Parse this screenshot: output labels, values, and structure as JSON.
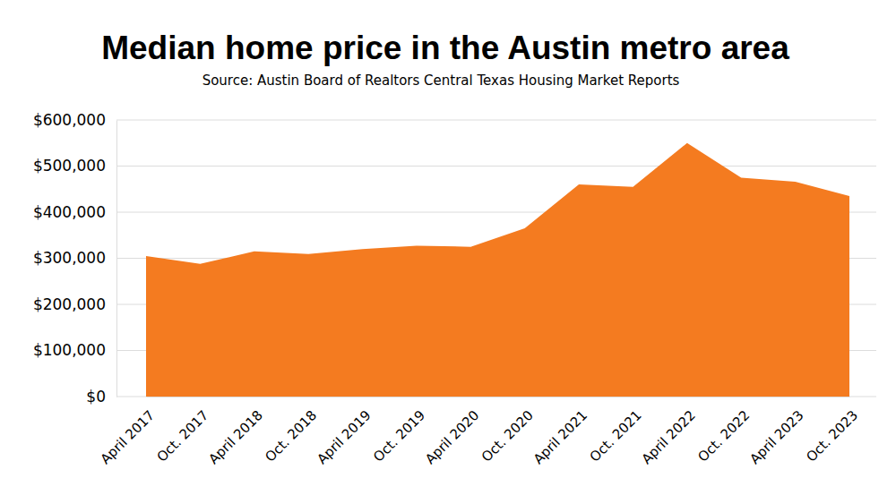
{
  "chart_data": {
    "type": "area",
    "title": "Median home price in the Austin metro area",
    "subtitle": "Source: Austin Board of Realtors Central Texas Housing Market Reports",
    "categories": [
      "April 2017",
      "Oct. 2017",
      "April 2018",
      "Oct. 2018",
      "April 2019",
      "Oct. 2019",
      "April 2020",
      "Oct. 2020",
      "April 2021",
      "Oct. 2021",
      "April 2022",
      "Oct. 2022",
      "April 2023",
      "Oct. 2023"
    ],
    "values": [
      305000,
      288000,
      315000,
      309000,
      320000,
      327000,
      325000,
      365000,
      460000,
      455000,
      550000,
      475000,
      466000,
      435000
    ],
    "color": "#f47b20",
    "ylim": [
      0,
      600000
    ],
    "yticks": [
      {
        "value": 0,
        "label": "$0"
      },
      {
        "value": 100000,
        "label": "$100,000"
      },
      {
        "value": 200000,
        "label": "$200,000"
      },
      {
        "value": 300000,
        "label": "$300,000"
      },
      {
        "value": 400000,
        "label": "$400,000"
      },
      {
        "value": 500000,
        "label": "$500,000"
      },
      {
        "value": 600000,
        "label": "$600,000"
      }
    ],
    "grid": true
  }
}
